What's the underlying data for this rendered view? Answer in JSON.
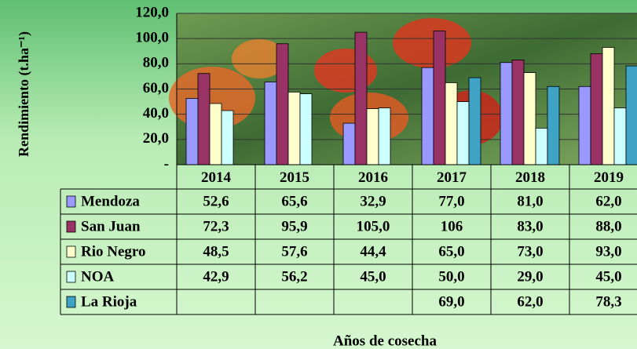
{
  "chart_data": {
    "type": "bar",
    "y_label": "Rendimiento (t.ha⁻¹)",
    "x_label": "Años de cosecha",
    "categories": [
      "2014",
      "2015",
      "2016",
      "2017",
      "2018",
      "2019"
    ],
    "series": [
      {
        "name": "Mendoza",
        "color": "#9999ff",
        "values": [
          52.6,
          65.6,
          32.9,
          77.0,
          81.0,
          62.0
        ],
        "value_labels": [
          "52,6",
          "65,6",
          "32,9",
          "77,0",
          "81,0",
          "62,0"
        ]
      },
      {
        "name": "San Juan",
        "color": "#993366",
        "values": [
          72.3,
          95.9,
          105.0,
          106,
          83.0,
          88.0
        ],
        "value_labels": [
          "72,3",
          "95,9",
          "105,0",
          "106",
          "83,0",
          "88,0"
        ]
      },
      {
        "name": "Rio Negro",
        "color": "#ffffcc",
        "values": [
          48.5,
          57.6,
          44.4,
          65.0,
          73.0,
          93.0
        ],
        "value_labels": [
          "48,5",
          "57,6",
          "44,4",
          "65,0",
          "73,0",
          "93,0"
        ]
      },
      {
        "name": "NOA",
        "color": "#ccffff",
        "values": [
          42.9,
          56.2,
          45.0,
          50.0,
          29.0,
          45.0
        ],
        "value_labels": [
          "42,9",
          "56,2",
          "45,0",
          "50,0",
          "29,0",
          "45,0"
        ]
      },
      {
        "name": "La Rioja",
        "color": "#3fa3c6",
        "values": [
          null,
          null,
          null,
          69.0,
          62.0,
          78.3
        ],
        "value_labels": [
          null,
          null,
          null,
          "69,0",
          "62,0",
          "78,3"
        ]
      }
    ],
    "ylim": [
      0,
      120
    ],
    "yticks": [
      {
        "value": 0,
        "label": "-"
      },
      {
        "value": 20,
        "label": "20,0"
      },
      {
        "value": 40,
        "label": "40,0"
      },
      {
        "value": 60,
        "label": "60,0"
      },
      {
        "value": 80,
        "label": "80,0"
      },
      {
        "value": 100,
        "label": "100,0"
      },
      {
        "value": 120,
        "label": "120,0"
      }
    ],
    "grid": true
  }
}
